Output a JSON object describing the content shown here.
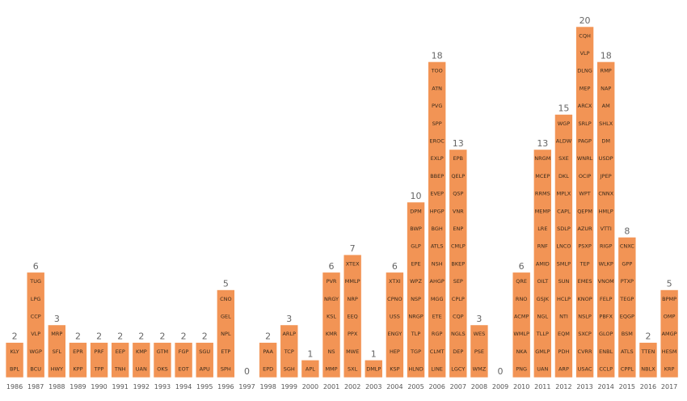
{
  "colors": {
    "bar": "#F29455",
    "bar_border": "#ffffff",
    "label": "#666666",
    "ticker": "#3a2a1a"
  },
  "chart_data": {
    "type": "bar",
    "title": "",
    "xlabel": "",
    "ylabel": "",
    "grid": false,
    "ylim": [
      0,
      20
    ],
    "categories": [
      "1986",
      "1987",
      "1988",
      "1989",
      "1990",
      "1991",
      "1992",
      "1993",
      "1994",
      "1995",
      "1996",
      "1997",
      "1998",
      "1999",
      "2000",
      "2001",
      "2002",
      "2003",
      "2004",
      "2005",
      "2006",
      "2007",
      "2008",
      "2009",
      "2010",
      "2011",
      "2012",
      "2013",
      "2014",
      "2015",
      "2016",
      "2017"
    ],
    "values": [
      2,
      6,
      3,
      2,
      2,
      2,
      2,
      2,
      2,
      2,
      5,
      0,
      2,
      3,
      1,
      6,
      7,
      1,
      6,
      10,
      18,
      13,
      3,
      0,
      6,
      13,
      15,
      20,
      18,
      8,
      2,
      5
    ],
    "tickers": [
      [
        "BPL",
        "KLY"
      ],
      [
        "BCU",
        "WGP",
        "VLP",
        "CCP",
        "LPG",
        "TUG"
      ],
      [
        "HWY",
        "SFL",
        "MRP"
      ],
      [
        "KPP",
        "EPR"
      ],
      [
        "TPP",
        "PRF"
      ],
      [
        "TNH",
        "EEP"
      ],
      [
        "UAN",
        "KMP"
      ],
      [
        "OKS",
        "GTM"
      ],
      [
        "EOT",
        "FGP"
      ],
      [
        "APU",
        "SGU"
      ],
      [
        "SPH",
        "ETP",
        "NPL",
        "GEL",
        "CNO"
      ],
      [],
      [
        "EPD",
        "PAA"
      ],
      [
        "SGH",
        "TCP",
        "ARLP"
      ],
      [
        "APL"
      ],
      [
        "MMP",
        "NS",
        "KMR",
        "KSL",
        "NRGY",
        "PVR"
      ],
      [
        "SXL",
        "MWE",
        "PPX",
        "EEQ",
        "NRP",
        "MMLP",
        "XTEX"
      ],
      [
        "DMLP"
      ],
      [
        "KSP",
        "HEP",
        "ENGY",
        "USS",
        "CPNO",
        "XTXI"
      ],
      [
        "HLND",
        "TGP",
        "TLP",
        "NRGP",
        "NSP",
        "WPZ",
        "EPE",
        "GLP",
        "BWP",
        "DPM"
      ],
      [
        "LINE",
        "CLMT",
        "RGP",
        "ETE",
        "MGG",
        "AHGP",
        "NSH",
        "ATLS",
        "BGH",
        "HPGP",
        "EVEP",
        "BBEP",
        "EXLP",
        "EROC",
        "SPP",
        "PVG",
        "ATN",
        "TOO"
      ],
      [
        "LGCY",
        "DEP",
        "NGLS",
        "CQP",
        "CPLP",
        "SEP",
        "BKEP",
        "CMLP",
        "ENP",
        "VNR",
        "QSP",
        "QELP",
        "EPB"
      ],
      [
        "WMZ",
        "PSE",
        "WES"
      ],
      [],
      [
        "PNG",
        "NKA",
        "WMLP",
        "ACMP",
        "RNO",
        "QRE"
      ],
      [
        "UAN",
        "GMLP",
        "TLLP",
        "NGL",
        "GSJK",
        "OILT",
        "AMID",
        "RNF",
        "LRE",
        "MEMP",
        "RRMS",
        "MCEP",
        "NRGM"
      ],
      [
        "ARP",
        "PDH",
        "EQM",
        "NTI",
        "HCLP",
        "SUN",
        "SMLP",
        "LNCO",
        "SDLP",
        "CAPL",
        "MPLX",
        "DKL",
        "SXE",
        "ALDW",
        "WGP"
      ],
      [
        "USAC",
        "CVRR",
        "SXCP",
        "NSLP",
        "KNOP",
        "EMES",
        "TEP",
        "PSXP",
        "AZUR",
        "QEPM",
        "WPT",
        "OCIP",
        "WNRL",
        "PAGP",
        "SRLP",
        "ARCX",
        "MEP",
        "DLNG",
        "VLP",
        "CQH"
      ],
      [
        "CCLP",
        "ENBL",
        "GLOP",
        "PBFX",
        "FELP",
        "VNOM",
        "WLKP",
        "RIGP",
        "VTTI",
        "HMLP",
        "CNNX",
        "JPEP",
        "USDP",
        "DM",
        "SHLX",
        "AM",
        "NAP",
        "RMP"
      ],
      [
        "CPPL",
        "ATLS",
        "BSM",
        "EQGP",
        "TEGP",
        "PTXP",
        "GPP",
        "CNXC"
      ],
      [
        "NBLX",
        "TTEN"
      ],
      [
        "KRP",
        "HESM",
        "AMGP",
        "OMP",
        "BPMP"
      ]
    ]
  }
}
